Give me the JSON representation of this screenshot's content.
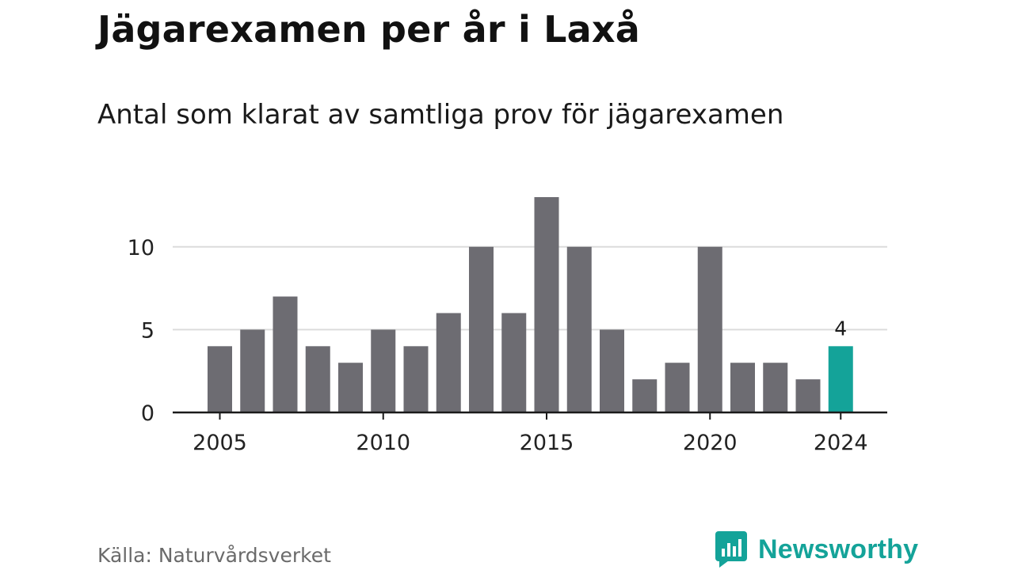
{
  "header": {
    "title": "Jägarexamen per år i Laxå",
    "subtitle": "Antal som klarat av samtliga prov för jägarexamen"
  },
  "footer": {
    "source": "Källa: Naturvårdsverket",
    "brand": "Newsworthy",
    "brand_icon": "bar-chart-speech-bubble-icon"
  },
  "colors": {
    "bar": "#6d6c72",
    "highlight": "#14a399",
    "grid": "#dcdcdc",
    "axis": "#1a1a1a",
    "brand": "#14a399"
  },
  "chart_data": {
    "type": "bar",
    "title": "Jägarexamen per år i Laxå",
    "subtitle": "Antal som klarat av samtliga prov för jägarexamen",
    "xlabel": "",
    "ylabel": "",
    "x": [
      2005,
      2006,
      2007,
      2008,
      2009,
      2010,
      2011,
      2012,
      2013,
      2014,
      2015,
      2016,
      2017,
      2018,
      2019,
      2020,
      2021,
      2022,
      2023,
      2024
    ],
    "values": [
      4,
      5,
      7,
      4,
      3,
      5,
      4,
      6,
      10,
      6,
      13,
      10,
      5,
      2,
      3,
      10,
      3,
      3,
      2,
      4
    ],
    "ylim": [
      0,
      13
    ],
    "y_ticks": [
      0,
      5,
      10
    ],
    "x_ticks": [
      2005,
      2010,
      2015,
      2020,
      2024
    ],
    "grid": true,
    "highlight": {
      "x": 2024,
      "label": "4"
    }
  }
}
